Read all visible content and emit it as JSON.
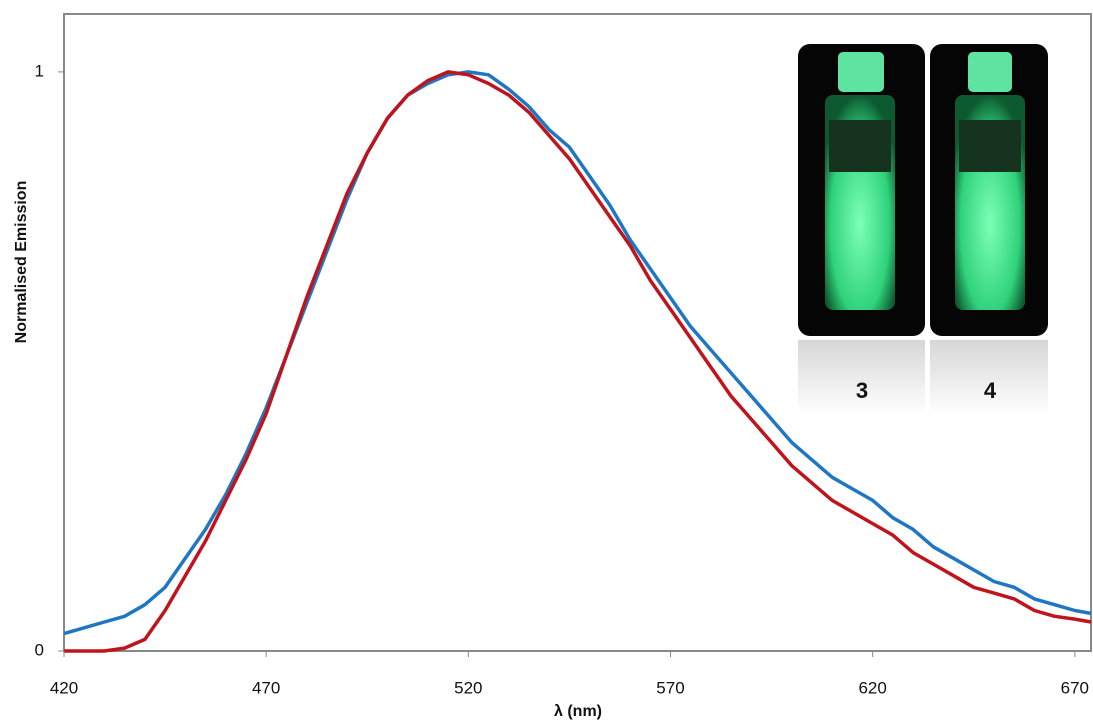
{
  "chart_data": {
    "type": "line",
    "x_label": "λ (nm)",
    "y_label": "Normalised Emission",
    "x": [
      420,
      425,
      430,
      435,
      440,
      445,
      450,
      455,
      460,
      465,
      470,
      475,
      480,
      485,
      490,
      495,
      500,
      505,
      510,
      515,
      520,
      525,
      530,
      535,
      540,
      545,
      550,
      555,
      560,
      565,
      570,
      575,
      580,
      585,
      590,
      595,
      600,
      605,
      610,
      615,
      620,
      625,
      630,
      635,
      640,
      645,
      650,
      655,
      660,
      665,
      670,
      674
    ],
    "series": [
      {
        "name": "3",
        "color": "#1f77c4",
        "values": [
          0.03,
          0.04,
          0.05,
          0.06,
          0.08,
          0.11,
          0.16,
          0.21,
          0.27,
          0.34,
          0.42,
          0.51,
          0.6,
          0.69,
          0.78,
          0.86,
          0.92,
          0.96,
          0.98,
          0.995,
          1.0,
          0.995,
          0.97,
          0.94,
          0.9,
          0.87,
          0.82,
          0.77,
          0.71,
          0.66,
          0.61,
          0.56,
          0.52,
          0.48,
          0.44,
          0.4,
          0.36,
          0.33,
          0.3,
          0.28,
          0.26,
          0.23,
          0.21,
          0.18,
          0.16,
          0.14,
          0.12,
          0.11,
          0.09,
          0.08,
          0.07,
          0.065
        ]
      },
      {
        "name": "4",
        "color": "#c0141c",
        "values": [
          0,
          0,
          0,
          0.005,
          0.02,
          0.07,
          0.13,
          0.19,
          0.26,
          0.33,
          0.41,
          0.51,
          0.61,
          0.7,
          0.79,
          0.86,
          0.92,
          0.96,
          0.985,
          1.0,
          0.995,
          0.98,
          0.96,
          0.93,
          0.89,
          0.85,
          0.8,
          0.75,
          0.7,
          0.64,
          0.59,
          0.54,
          0.49,
          0.44,
          0.4,
          0.36,
          0.32,
          0.29,
          0.26,
          0.24,
          0.22,
          0.2,
          0.17,
          0.15,
          0.13,
          0.11,
          0.1,
          0.09,
          0.07,
          0.06,
          0.055,
          0.05
        ]
      }
    ],
    "xlim": [
      420,
      674
    ],
    "xticks": [
      420,
      470,
      520,
      570,
      620,
      670
    ],
    "ylim": [
      0,
      1.1
    ],
    "yticks": [
      0,
      1
    ]
  }
}
